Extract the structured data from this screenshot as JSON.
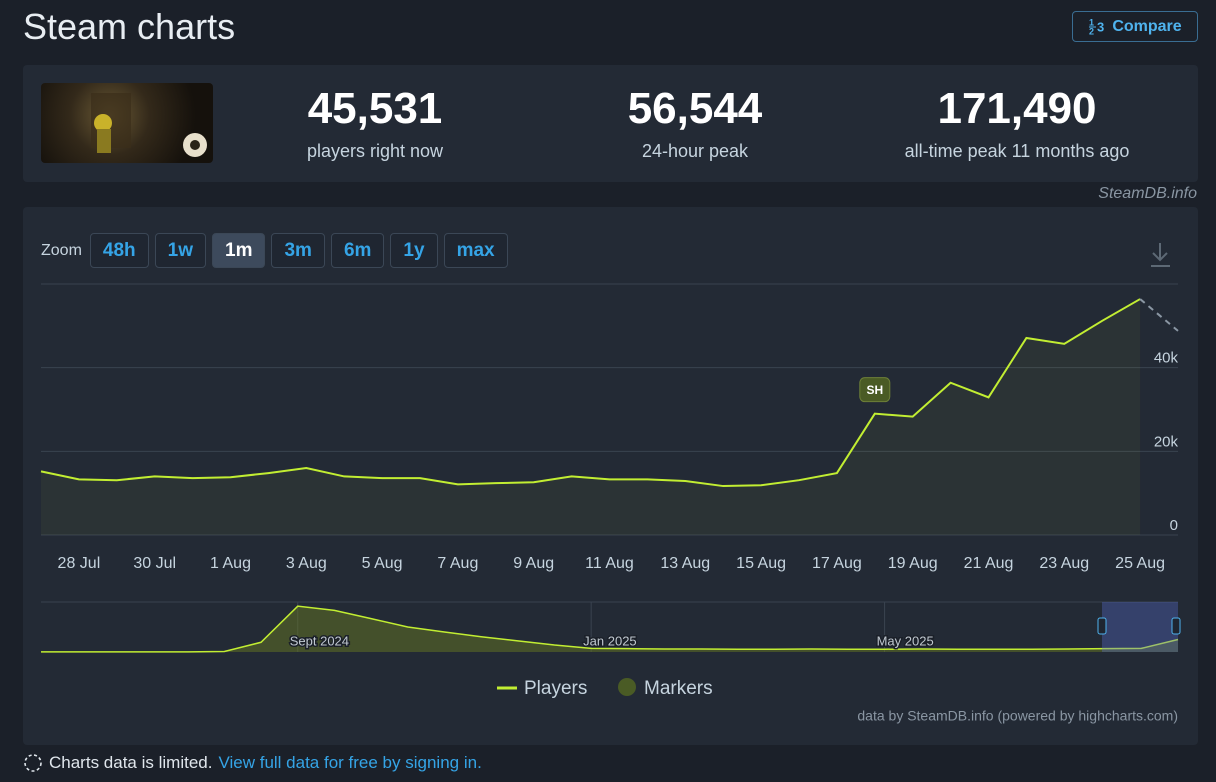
{
  "header": {
    "title": "Steam charts",
    "compare": "Compare"
  },
  "stats": [
    {
      "value": "45,531",
      "label": "players right now"
    },
    {
      "value": "56,544",
      "label": "24-hour peak"
    },
    {
      "value": "171,490",
      "label": "all-time peak 11 months ago"
    }
  ],
  "watermark": "SteamDB.info",
  "zoom": {
    "label": "Zoom",
    "options": [
      "48h",
      "1w",
      "1m",
      "3m",
      "6m",
      "1y",
      "max"
    ],
    "active": "1m"
  },
  "chart_data": [
    {
      "type": "line",
      "categories": [
        null,
        "28 Jul",
        null,
        "30 Jul",
        null,
        "1 Aug",
        null,
        "3 Aug",
        null,
        "5 Aug",
        null,
        "7 Aug",
        null,
        "9 Aug",
        null,
        "11 Aug",
        null,
        "13 Aug",
        null,
        "15 Aug",
        null,
        "17 Aug",
        null,
        "19 Aug",
        null,
        "21 Aug",
        null,
        "23 Aug",
        null,
        "25 Aug",
        null
      ],
      "series": [
        {
          "name": "Players",
          "color": "#c2ee32",
          "values": [
            15200,
            13300,
            13100,
            14000,
            13600,
            13800,
            14800,
            16000,
            14000,
            13600,
            13600,
            12100,
            12400,
            12600,
            14000,
            13300,
            13300,
            12900,
            11700,
            11900,
            13100,
            14800,
            29000,
            28300,
            36400,
            32900,
            47100,
            45700,
            51200,
            56400,
            48800
          ]
        }
      ],
      "last_point_dashed": true,
      "markers": {
        "name": "Markers",
        "color": "#4a5b25",
        "points": [
          {
            "label": "SH",
            "index": 22
          }
        ]
      },
      "ylim": [
        0,
        60000
      ],
      "yticks": [
        0,
        {
          "value": 20000,
          "label": "20k"
        },
        {
          "value": 40000,
          "label": "40k"
        }
      ],
      "grid": true
    },
    {
      "type": "area",
      "categories": [
        null,
        null,
        null,
        null,
        null,
        null,
        null,
        "Sept 2024",
        null,
        null,
        null,
        null,
        null,
        null,
        null,
        "Jan 2025",
        null,
        null,
        null,
        null,
        null,
        null,
        null,
        "May 2025",
        null,
        null,
        null,
        null,
        null,
        null,
        null,
        null
      ],
      "values": [
        500,
        500,
        500,
        500,
        600,
        2000,
        35000,
        165000,
        150000,
        120000,
        90000,
        72000,
        55000,
        40000,
        25000,
        13000,
        12000,
        11000,
        11000,
        10000,
        10000,
        11000,
        10000,
        10000,
        11000,
        10000,
        10000,
        10000,
        11000,
        12000,
        13000,
        45000
      ],
      "color": "#c2ee32",
      "ylim": [
        0,
        180000
      ]
    }
  ],
  "credits": "data by SteamDB.info (powered by highcharts.com)",
  "notice": {
    "text": "Charts data is limited.",
    "link": "View full data for free by signing in."
  }
}
